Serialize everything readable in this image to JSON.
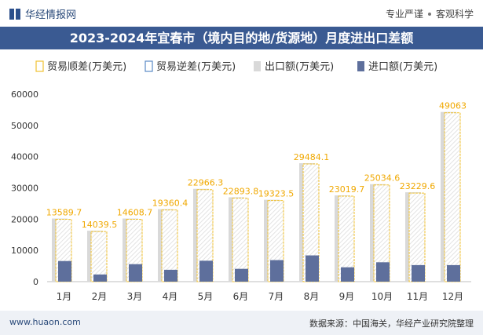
{
  "header": {
    "brand": "华经情报网",
    "tags": [
      "专业严谨",
      "客观科学"
    ]
  },
  "footer": {
    "website": "www.huaon.com",
    "source": "数据来源：中国海关，华经产业研究院整理"
  },
  "colors": {
    "title_bg": "#3a5a92",
    "surplus": "#f1c232",
    "deficit": "#5b8ac6",
    "export": "#d9d9d9",
    "import": "#5e6f9c",
    "label": "#f0a800"
  },
  "chart_data": {
    "type": "bar",
    "title": "2023-2024年宜春市（境内目的地/货源地）月度进出口差额",
    "categories": [
      "1月",
      "2月",
      "3月",
      "4月",
      "5月",
      "6月",
      "7月",
      "8月",
      "9月",
      "10月",
      "11月",
      "12月"
    ],
    "series": [
      {
        "name": "贸易顺差(万美元)",
        "values": [
          13589.7,
          14039.5,
          14608.7,
          19360.4,
          22966.3,
          22893.8,
          19323.5,
          29484.1,
          23019.7,
          25034.6,
          23229.6,
          49063
        ]
      },
      {
        "name": "贸易逆差(万美元)",
        "values": [
          0,
          0,
          0,
          0,
          0,
          0,
          0,
          0,
          0,
          0,
          0,
          0
        ]
      },
      {
        "name": "出口额(万美元)",
        "values": [
          20200,
          16300,
          20200,
          23200,
          29700,
          27000,
          26200,
          37900,
          27600,
          31200,
          28600,
          54300
        ]
      },
      {
        "name": "进口额(万美元)",
        "values": [
          6600,
          2300,
          5600,
          3800,
          6700,
          4100,
          6900,
          8400,
          4600,
          6200,
          5300,
          5300
        ]
      }
    ],
    "data_labels": [
      "13589.7",
      "14039.5",
      "14608.7",
      "19360.4",
      "22966.3",
      "22893.8",
      "19323.5",
      "29484.1",
      "23019.7",
      "25034.6",
      "23229.6",
      "49063"
    ],
    "ylim": [
      0,
      60000
    ],
    "yticks": [
      0,
      10000,
      20000,
      30000,
      40000,
      50000,
      60000
    ],
    "ytick_labels": [
      "0",
      "10000",
      "20000",
      "30000",
      "40000",
      "50000",
      "60000"
    ],
    "legend_position": "top",
    "grid": false
  }
}
